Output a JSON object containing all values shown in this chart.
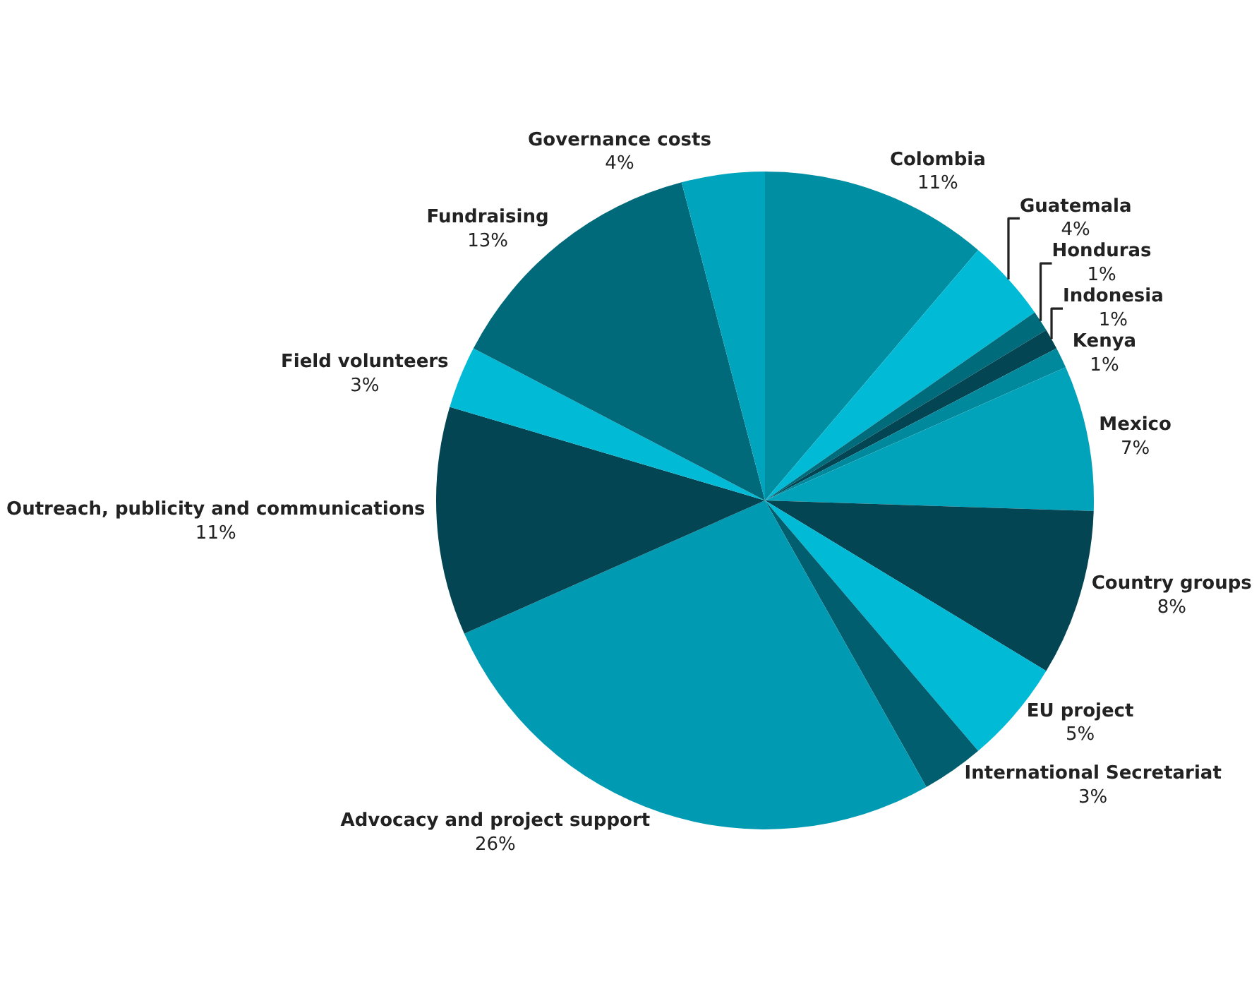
{
  "chart_data": {
    "type": "pie",
    "categories": [
      "Colombia",
      "Guatemala",
      "Honduras",
      "Indonesia",
      "Kenya",
      "Mexico",
      "Country groups",
      "EU project",
      "International Secretariat",
      "Advocacy and project support",
      "Outreach, publicity and communications",
      "Field volunteers",
      "Fundraising",
      "Governance costs"
    ],
    "values": [
      11,
      4,
      1,
      1,
      1,
      7,
      8,
      5,
      3,
      26,
      11,
      3,
      13,
      4
    ],
    "value_labels": [
      "11%",
      "4%",
      "1%",
      "1%",
      "1%",
      "7%",
      "8%",
      "5%",
      "3%",
      "26%",
      "11%",
      "3%",
      "13%",
      "4%"
    ],
    "colors": [
      "#008ea3",
      "#00bad6",
      "#006b7b",
      "#034553",
      "#00899c",
      "#00a3ba",
      "#034553",
      "#00bad6",
      "#005e6e",
      "#009bb3",
      "#034553",
      "#00bad6",
      "#006a7b",
      "#00a4bd"
    ],
    "legend": false
  }
}
